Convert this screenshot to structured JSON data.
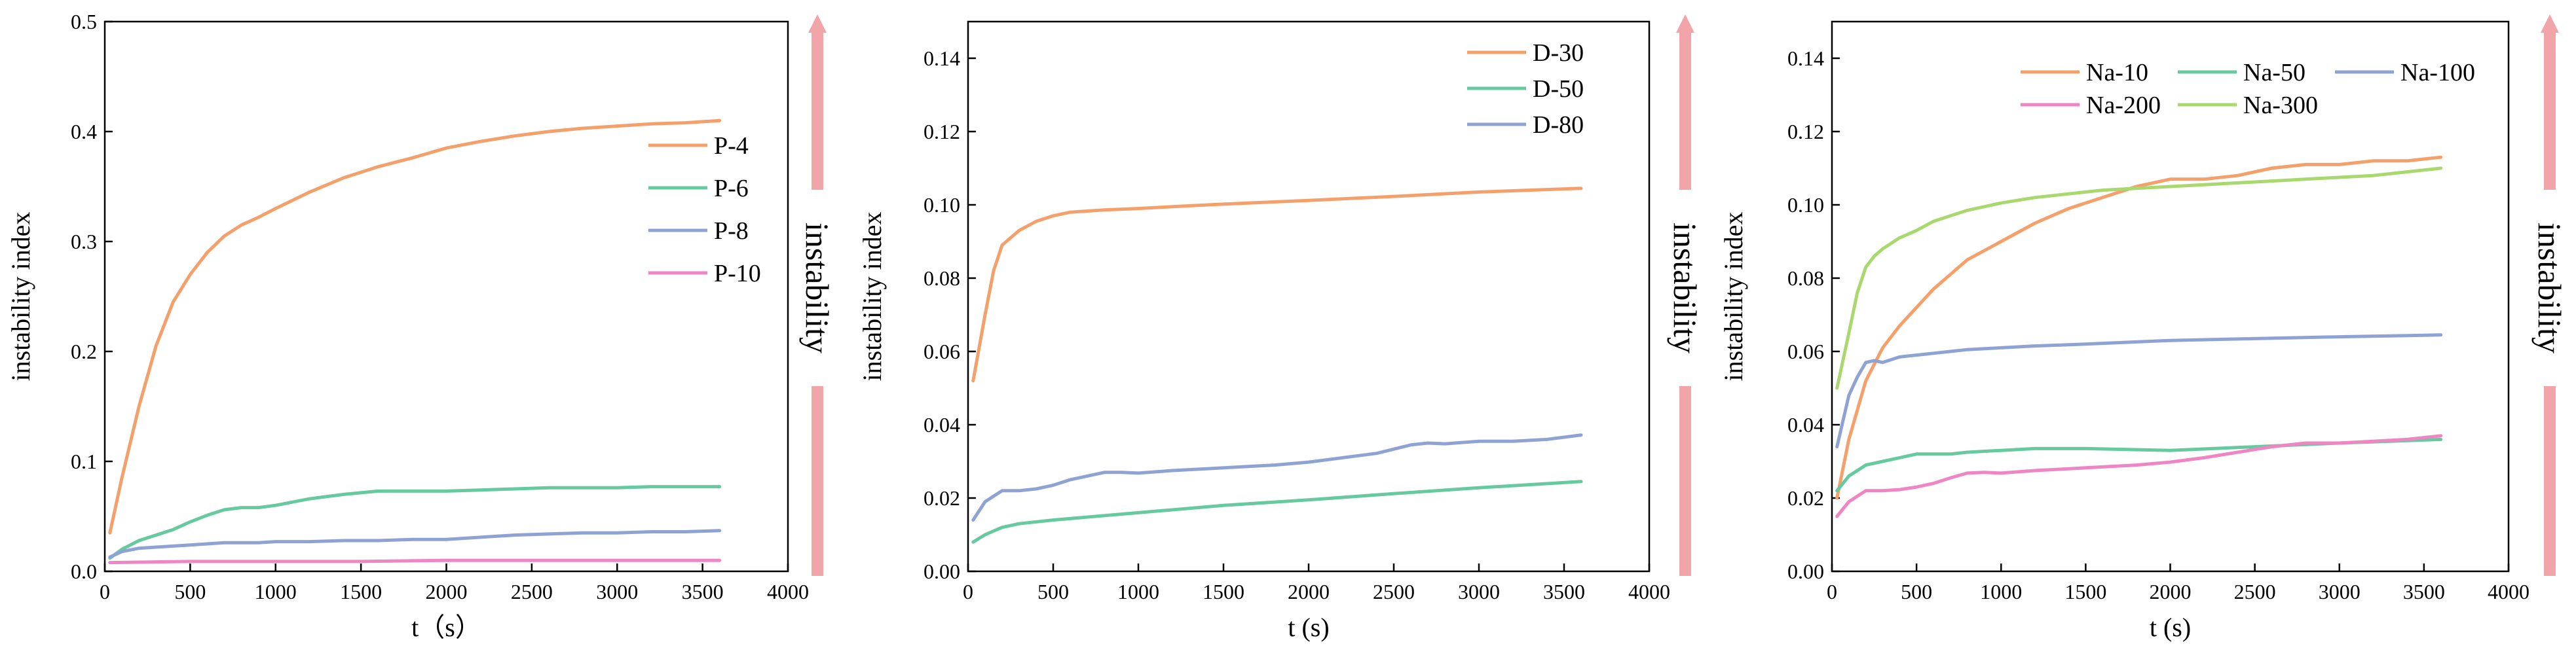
{
  "chart_data": [
    {
      "type": "line",
      "xlabel": "t（s）",
      "ylabel": "instability index",
      "xlim": [
        0,
        4000
      ],
      "ylim": [
        0,
        0.5
      ],
      "xticks": [
        0,
        500,
        1000,
        1500,
        2000,
        2500,
        3000,
        3500,
        4000
      ],
      "yticks": [
        0.0,
        0.1,
        0.2,
        0.3,
        0.4,
        0.5
      ],
      "ytick_labels": [
        "0.0",
        "0.1",
        "0.2",
        "0.3",
        "0.4",
        "0.5"
      ],
      "grid": false,
      "legend_position": "right",
      "side_label": "instability",
      "series": [
        {
          "name": "P-4",
          "color": "#F4A06B",
          "x": [
            30,
            100,
            200,
            300,
            400,
            500,
            600,
            700,
            800,
            900,
            1000,
            1200,
            1400,
            1600,
            1800,
            2000,
            2200,
            2400,
            2600,
            2800,
            3000,
            3200,
            3400,
            3600
          ],
          "y": [
            0.035,
            0.085,
            0.15,
            0.205,
            0.245,
            0.27,
            0.29,
            0.305,
            0.315,
            0.322,
            0.33,
            0.345,
            0.358,
            0.368,
            0.376,
            0.385,
            0.391,
            0.396,
            0.4,
            0.403,
            0.405,
            0.407,
            0.408,
            0.41
          ]
        },
        {
          "name": "P-6",
          "color": "#66C9A0",
          "x": [
            30,
            100,
            200,
            300,
            400,
            500,
            600,
            700,
            800,
            900,
            1000,
            1200,
            1400,
            1600,
            1800,
            2000,
            2200,
            2400,
            2600,
            2800,
            3000,
            3200,
            3400,
            3600
          ],
          "y": [
            0.012,
            0.02,
            0.028,
            0.033,
            0.038,
            0.045,
            0.051,
            0.056,
            0.058,
            0.058,
            0.06,
            0.066,
            0.07,
            0.073,
            0.073,
            0.073,
            0.074,
            0.075,
            0.076,
            0.076,
            0.076,
            0.077,
            0.077,
            0.077
          ]
        },
        {
          "name": "P-8",
          "color": "#8FA2D4",
          "x": [
            30,
            100,
            200,
            300,
            400,
            500,
            600,
            700,
            800,
            900,
            1000,
            1200,
            1400,
            1600,
            1800,
            2000,
            2200,
            2400,
            2600,
            2800,
            3000,
            3200,
            3400,
            3600
          ],
          "y": [
            0.013,
            0.018,
            0.021,
            0.022,
            0.023,
            0.024,
            0.025,
            0.026,
            0.026,
            0.026,
            0.027,
            0.027,
            0.028,
            0.028,
            0.029,
            0.029,
            0.031,
            0.033,
            0.034,
            0.035,
            0.035,
            0.036,
            0.036,
            0.037
          ]
        },
        {
          "name": "P-10",
          "color": "#EE86C3",
          "x": [
            30,
            500,
            1000,
            1500,
            2000,
            2500,
            3000,
            3600
          ],
          "y": [
            0.008,
            0.009,
            0.009,
            0.009,
            0.01,
            0.01,
            0.01,
            0.01
          ]
        }
      ]
    },
    {
      "type": "line",
      "xlabel": "t (s)",
      "ylabel": "instability index",
      "xlim": [
        0,
        4000
      ],
      "ylim": [
        0,
        0.15
      ],
      "xticks": [
        0,
        500,
        1000,
        1500,
        2000,
        2500,
        3000,
        3500,
        4000
      ],
      "yticks": [
        0.0,
        0.02,
        0.04,
        0.06,
        0.08,
        0.1,
        0.12,
        0.14
      ],
      "ytick_labels": [
        "0.00",
        "0.02",
        "0.04",
        "0.06",
        "0.08",
        "0.10",
        "0.12",
        "0.14"
      ],
      "grid": false,
      "legend_position": "top-right",
      "side_label": "instability",
      "series": [
        {
          "name": "D-30",
          "color": "#F4A06B",
          "x": [
            30,
            100,
            150,
            200,
            250,
            300,
            400,
            500,
            600,
            700,
            800,
            1000,
            1200,
            1500,
            2000,
            2500,
            3000,
            3600
          ],
          "y": [
            0.052,
            0.07,
            0.082,
            0.089,
            0.091,
            0.093,
            0.0955,
            0.097,
            0.098,
            0.0983,
            0.0986,
            0.099,
            0.0995,
            0.1002,
            0.1012,
            0.1023,
            0.1035,
            0.1045
          ]
        },
        {
          "name": "D-50",
          "color": "#66C9A0",
          "x": [
            30,
            100,
            200,
            300,
            500,
            1000,
            1500,
            2000,
            2500,
            3000,
            3600
          ],
          "y": [
            0.008,
            0.01,
            0.012,
            0.013,
            0.014,
            0.016,
            0.018,
            0.0195,
            0.0212,
            0.0228,
            0.0245
          ]
        },
        {
          "name": "D-80",
          "color": "#8FA2D4",
          "x": [
            30,
            100,
            200,
            300,
            400,
            500,
            600,
            700,
            800,
            900,
            1000,
            1200,
            1400,
            1600,
            1800,
            2000,
            2200,
            2400,
            2600,
            2700,
            2800,
            3000,
            3200,
            3400,
            3600
          ],
          "y": [
            0.014,
            0.019,
            0.022,
            0.022,
            0.0225,
            0.0235,
            0.025,
            0.026,
            0.027,
            0.027,
            0.0268,
            0.0275,
            0.028,
            0.0285,
            0.029,
            0.0298,
            0.031,
            0.0322,
            0.0345,
            0.035,
            0.0348,
            0.0355,
            0.0355,
            0.036,
            0.0372
          ]
        }
      ]
    },
    {
      "type": "line",
      "xlabel": "t (s)",
      "ylabel": "instability index",
      "xlim": [
        0,
        4000
      ],
      "ylim": [
        0,
        0.15
      ],
      "xticks": [
        0,
        500,
        1000,
        1500,
        2000,
        2500,
        3000,
        3500,
        4000
      ],
      "yticks": [
        0.0,
        0.02,
        0.04,
        0.06,
        0.08,
        0.1,
        0.12,
        0.14
      ],
      "ytick_labels": [
        "0.00",
        "0.02",
        "0.04",
        "0.06",
        "0.08",
        "0.10",
        "0.12",
        "0.14"
      ],
      "grid": false,
      "legend_position": "top-right",
      "side_label": "instability",
      "series": [
        {
          "name": "Na-10",
          "color": "#F4A06B",
          "x": [
            30,
            100,
            200,
            300,
            400,
            500,
            600,
            700,
            800,
            1000,
            1200,
            1400,
            1600,
            1800,
            2000,
            2200,
            2400,
            2600,
            2800,
            3000,
            3200,
            3400,
            3600
          ],
          "y": [
            0.02,
            0.036,
            0.052,
            0.061,
            0.067,
            0.072,
            0.077,
            0.081,
            0.085,
            0.09,
            0.095,
            0.099,
            0.102,
            0.105,
            0.107,
            0.107,
            0.108,
            0.11,
            0.111,
            0.111,
            0.112,
            0.112,
            0.113
          ]
        },
        {
          "name": "Na-50",
          "color": "#66C9A0",
          "x": [
            30,
            100,
            200,
            300,
            400,
            500,
            600,
            700,
            800,
            1000,
            1200,
            1500,
            2000,
            2500,
            3000,
            3600
          ],
          "y": [
            0.022,
            0.026,
            0.029,
            0.03,
            0.031,
            0.032,
            0.032,
            0.032,
            0.0325,
            0.033,
            0.0335,
            0.0335,
            0.033,
            0.034,
            0.035,
            0.036
          ]
        },
        {
          "name": "Na-100",
          "color": "#8FA2D4",
          "x": [
            30,
            100,
            150,
            200,
            250,
            300,
            400,
            500,
            600,
            700,
            800,
            1000,
            1200,
            1500,
            2000,
            2500,
            3000,
            3600
          ],
          "y": [
            0.034,
            0.048,
            0.053,
            0.057,
            0.0575,
            0.057,
            0.0585,
            0.059,
            0.0595,
            0.06,
            0.0605,
            0.061,
            0.0615,
            0.062,
            0.063,
            0.0635,
            0.064,
            0.0645
          ]
        },
        {
          "name": "Na-200",
          "color": "#EE86C3",
          "x": [
            30,
            100,
            200,
            300,
            400,
            500,
            600,
            700,
            800,
            900,
            1000,
            1200,
            1400,
            1600,
            1800,
            2000,
            2200,
            2400,
            2600,
            2800,
            3000,
            3200,
            3400,
            3600
          ],
          "y": [
            0.015,
            0.019,
            0.022,
            0.022,
            0.0223,
            0.023,
            0.024,
            0.0255,
            0.0268,
            0.027,
            0.0268,
            0.0275,
            0.028,
            0.0285,
            0.029,
            0.0298,
            0.031,
            0.0325,
            0.034,
            0.035,
            0.035,
            0.0355,
            0.036,
            0.037
          ]
        },
        {
          "name": "Na-300",
          "color": "#A9D86E",
          "x": [
            30,
            100,
            150,
            200,
            250,
            300,
            400,
            500,
            600,
            700,
            800,
            1000,
            1200,
            1400,
            1600,
            1800,
            2000,
            2200,
            2400,
            2600,
            2800,
            3000,
            3200,
            3400,
            3600
          ],
          "y": [
            0.05,
            0.065,
            0.076,
            0.083,
            0.086,
            0.088,
            0.091,
            0.093,
            0.0955,
            0.097,
            0.0985,
            0.1005,
            0.102,
            0.103,
            0.104,
            0.1045,
            0.105,
            0.1055,
            0.106,
            0.1065,
            0.107,
            0.1075,
            0.108,
            0.109,
            0.11
          ]
        }
      ]
    }
  ],
  "colors": {
    "arrow": "#F1A5A9",
    "axis": "#000000"
  }
}
